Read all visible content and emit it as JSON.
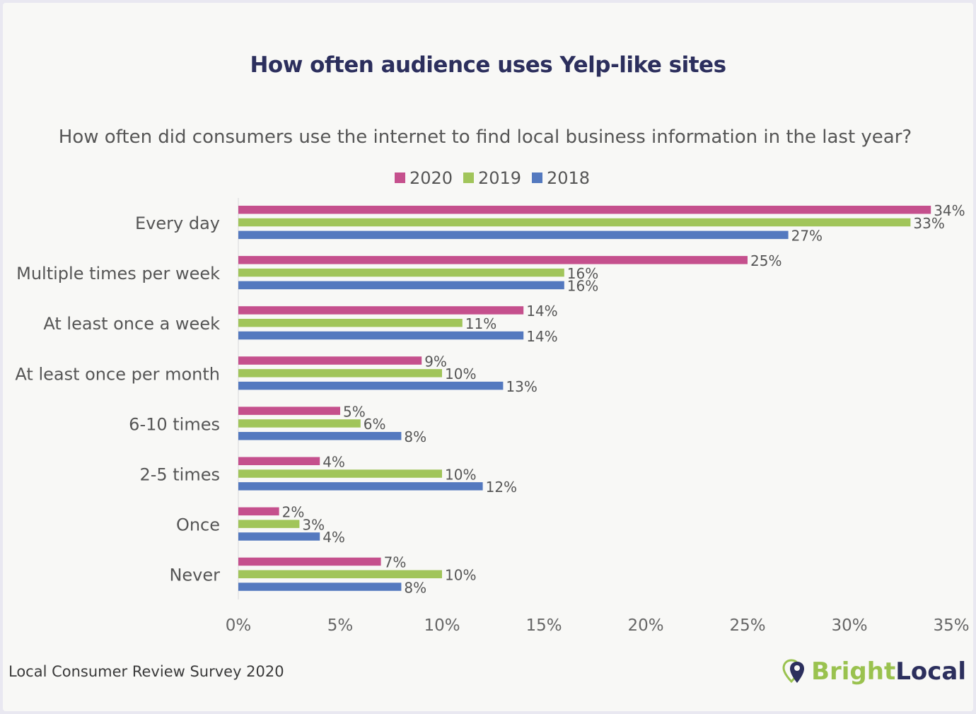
{
  "title": "How often audience uses Yelp-like sites",
  "footer": {
    "source": "Local Consumer Review Survey 2020",
    "brand_part1": "Bright",
    "brand_part2": "Local"
  },
  "colors": {
    "2020": "#c5508d",
    "2019": "#a1c55a",
    "2018": "#5479bf",
    "brand_green": "#9ac24f",
    "brand_navy": "#2c2f5d"
  },
  "chart_data": {
    "type": "bar",
    "orientation": "horizontal",
    "title": "How often did consumers use the internet to find local business information in the last year?",
    "categories": [
      "Every day",
      "Multiple times per week",
      "At least once a week",
      "At least once per month",
      "6-10 times",
      "2-5 times",
      "Once",
      "Never"
    ],
    "series": [
      {
        "name": "2020",
        "color": "#c5508d",
        "values": [
          34,
          25,
          14,
          9,
          5,
          4,
          2,
          7
        ]
      },
      {
        "name": "2019",
        "color": "#a1c55a",
        "values": [
          33,
          16,
          11,
          10,
          6,
          10,
          3,
          10
        ]
      },
      {
        "name": "2018",
        "color": "#5479bf",
        "values": [
          27,
          16,
          14,
          13,
          8,
          12,
          4,
          8
        ]
      }
    ],
    "xlim": [
      0,
      35
    ],
    "xticks": [
      0,
      5,
      10,
      15,
      20,
      25,
      30,
      35
    ],
    "tick_suffix": "%",
    "legend_position": "top-center",
    "grid": false
  }
}
